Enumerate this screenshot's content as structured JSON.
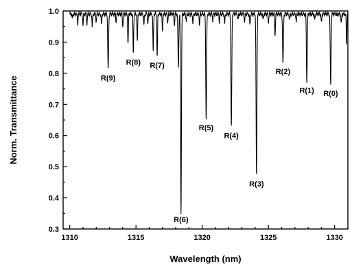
{
  "chart_data": {
    "type": "line",
    "title": "",
    "xlabel": "Wavelength (nm)",
    "ylabel": "Norm. Transmittance",
    "xlim": [
      1309.5,
      1331
    ],
    "ylim": [
      0.3,
      1.0
    ],
    "x_ticks": [
      1310,
      1315,
      1320,
      1325,
      1330
    ],
    "y_ticks": [
      0.3,
      0.4,
      0.5,
      0.6,
      0.7,
      0.8,
      0.9,
      1.0
    ],
    "x_tick_labels": [
      "1310",
      "1315",
      "1320",
      "1325",
      "1330"
    ],
    "y_tick_labels": [
      "0.3",
      "0.4",
      "0.5",
      "0.6",
      "0.7",
      "0.8",
      "0.9",
      "1.0"
    ],
    "grid": false,
    "series": [
      {
        "baseline": 0.99,
        "absorption_lines": [
          {
            "x": 1310.2,
            "y": 0.975
          },
          {
            "x": 1310.6,
            "y": 0.96
          },
          {
            "x": 1311.0,
            "y": 0.955
          },
          {
            "x": 1311.3,
            "y": 0.96
          },
          {
            "x": 1311.7,
            "y": 0.95
          },
          {
            "x": 1312.0,
            "y": 0.965
          },
          {
            "x": 1312.4,
            "y": 0.955
          },
          {
            "x": 1312.9,
            "y": 0.81
          },
          {
            "x": 1313.5,
            "y": 0.965
          },
          {
            "x": 1314.0,
            "y": 0.95
          },
          {
            "x": 1314.4,
            "y": 0.89
          },
          {
            "x": 1314.8,
            "y": 0.86
          },
          {
            "x": 1315.1,
            "y": 0.9
          },
          {
            "x": 1315.6,
            "y": 0.955
          },
          {
            "x": 1315.9,
            "y": 0.96
          },
          {
            "x": 1316.3,
            "y": 0.87
          },
          {
            "x": 1316.6,
            "y": 0.85
          },
          {
            "x": 1317.0,
            "y": 0.93
          },
          {
            "x": 1317.4,
            "y": 0.965
          },
          {
            "x": 1317.9,
            "y": 0.955
          },
          {
            "x": 1318.2,
            "y": 0.82
          },
          {
            "x": 1318.4,
            "y": 0.355
          },
          {
            "x": 1318.8,
            "y": 0.965
          },
          {
            "x": 1319.3,
            "y": 0.96
          },
          {
            "x": 1319.8,
            "y": 0.955
          },
          {
            "x": 1320.3,
            "y": 0.65
          },
          {
            "x": 1320.8,
            "y": 0.97
          },
          {
            "x": 1321.3,
            "y": 0.965
          },
          {
            "x": 1321.7,
            "y": 0.96
          },
          {
            "x": 1322.2,
            "y": 0.625
          },
          {
            "x": 1322.7,
            "y": 0.97
          },
          {
            "x": 1323.2,
            "y": 0.965
          },
          {
            "x": 1323.6,
            "y": 0.955
          },
          {
            "x": 1324.1,
            "y": 0.47
          },
          {
            "x": 1324.6,
            "y": 0.97
          },
          {
            "x": 1325.0,
            "y": 0.965
          },
          {
            "x": 1325.5,
            "y": 0.92
          },
          {
            "x": 1326.1,
            "y": 0.83
          },
          {
            "x": 1326.6,
            "y": 0.97
          },
          {
            "x": 1327.1,
            "y": 0.965
          },
          {
            "x": 1327.9,
            "y": 0.77
          },
          {
            "x": 1328.5,
            "y": 0.97
          },
          {
            "x": 1329.0,
            "y": 0.96
          },
          {
            "x": 1329.7,
            "y": 0.76
          },
          {
            "x": 1330.2,
            "y": 0.985
          },
          {
            "x": 1330.5,
            "y": 0.96
          },
          {
            "x": 1330.9,
            "y": 0.89
          }
        ]
      }
    ],
    "annotations": [
      {
        "label": "R(9)",
        "x": 1312.9,
        "y": 0.81
      },
      {
        "label": "R(8)",
        "x": 1314.8,
        "y": 0.86
      },
      {
        "label": "R(7)",
        "x": 1316.6,
        "y": 0.85
      },
      {
        "label": "R(6)",
        "x": 1318.4,
        "y": 0.355
      },
      {
        "label": "R(5)",
        "x": 1320.3,
        "y": 0.65
      },
      {
        "label": "R(4)",
        "x": 1322.2,
        "y": 0.625
      },
      {
        "label": "R(3)",
        "x": 1324.1,
        "y": 0.47
      },
      {
        "label": "R(2)",
        "x": 1326.1,
        "y": 0.83
      },
      {
        "label": "R(1)",
        "x": 1327.9,
        "y": 0.77
      },
      {
        "label": "R(0)",
        "x": 1329.7,
        "y": 0.76
      }
    ]
  }
}
